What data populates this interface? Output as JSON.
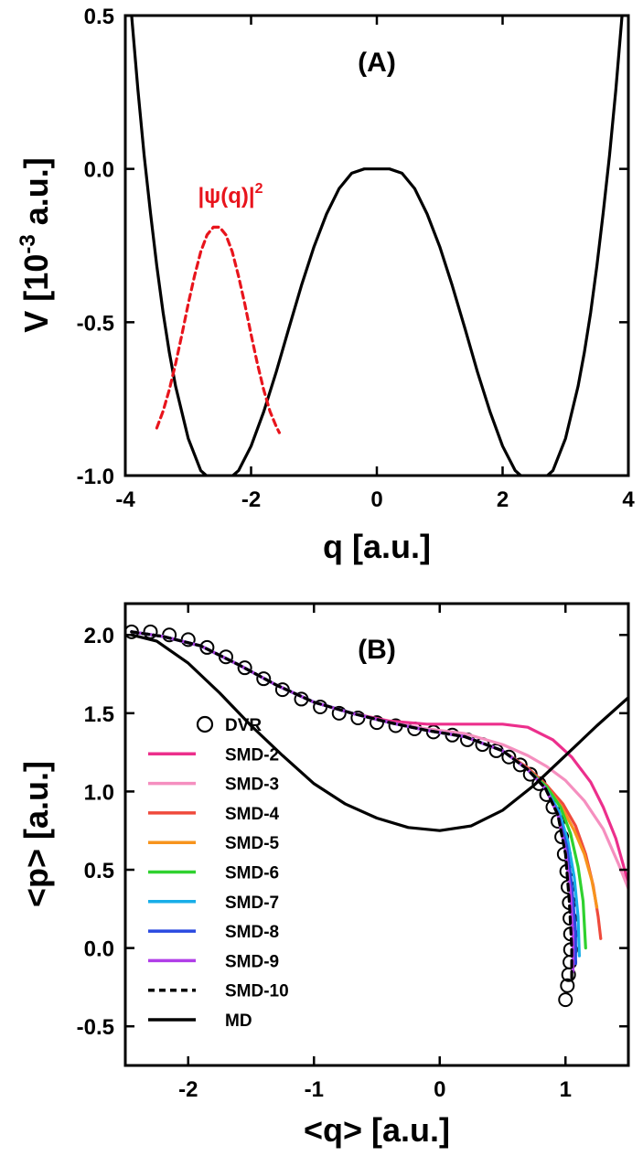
{
  "chart_data": [
    {
      "type": "line",
      "panel_label": "(A)",
      "xlabel": "q [a.u.]",
      "ylabel": "V [10-3 a.u.]",
      "ylabel_parts": {
        "main": "V [10",
        "sup": "-3",
        "rest": " a.u.]"
      },
      "xlim": [
        -4,
        4
      ],
      "ylim": [
        -1.0,
        0.5
      ],
      "xticks": [
        -4,
        -2,
        0,
        2,
        4
      ],
      "xtick_labels": [
        "-4",
        "-2",
        "0",
        "2",
        "4"
      ],
      "yticks": [
        -1.0,
        -0.5,
        0.0,
        0.5
      ],
      "ytick_labels": [
        "-1.0",
        "-0.5",
        "0.0",
        "0.5"
      ],
      "grid": false,
      "series": [
        {
          "color": "#000000",
          "style": "solid",
          "x": [
            -3.9,
            -3.8,
            -3.7,
            -3.6,
            -3.5,
            -3.4,
            -3.3,
            -3.2,
            -3.0,
            -2.8,
            -2.6,
            -2.5,
            -2.4,
            -2.2,
            -2.0,
            -1.8,
            -1.6,
            -1.4,
            -1.2,
            -1.0,
            -0.8,
            -0.6,
            -0.4,
            -0.2,
            0.0,
            0.2,
            0.4,
            0.6,
            0.8,
            1.0,
            1.2,
            1.4,
            1.6,
            1.8,
            2.0,
            2.2,
            2.4,
            2.5,
            2.6,
            2.8,
            3.0,
            3.2,
            3.3,
            3.4,
            3.5,
            3.6,
            3.7,
            3.8,
            3.9
          ],
          "y": [
            0.5,
            0.258,
            0.044,
            -0.143,
            -0.316,
            -0.468,
            -0.598,
            -0.709,
            -0.879,
            -0.984,
            -1.02,
            -1.022,
            -1.02,
            -0.984,
            -0.904,
            -0.792,
            -0.662,
            -0.52,
            -0.381,
            -0.254,
            -0.147,
            -0.064,
            -0.014,
            0.0,
            0.0,
            0.0,
            -0.014,
            -0.064,
            -0.147,
            -0.254,
            -0.381,
            -0.52,
            -0.662,
            -0.792,
            -0.904,
            -0.984,
            -1.02,
            -1.022,
            -1.02,
            -0.984,
            -0.879,
            -0.709,
            -0.598,
            -0.468,
            -0.316,
            -0.143,
            0.044,
            0.258,
            0.5
          ]
        },
        {
          "color": "#e8141c",
          "style": "dashed",
          "x": [
            -3.5,
            -3.4,
            -3.3,
            -3.2,
            -3.1,
            -3.0,
            -2.9,
            -2.8,
            -2.7,
            -2.6,
            -2.5,
            -2.4,
            -2.3,
            -2.2,
            -2.1,
            -2.0,
            -1.9,
            -1.8,
            -1.7,
            -1.6,
            -1.55
          ],
          "y": [
            -0.845,
            -0.79,
            -0.72,
            -0.635,
            -0.54,
            -0.44,
            -0.35,
            -0.27,
            -0.215,
            -0.19,
            -0.19,
            -0.215,
            -0.27,
            -0.35,
            -0.44,
            -0.54,
            -0.635,
            -0.72,
            -0.79,
            -0.84,
            -0.86
          ]
        }
      ],
      "annotations": [
        {
          "text": "|ψ(q)|",
          "sup": "2",
          "color": "#e8141c",
          "x": -2.5,
          "y": -0.1
        }
      ]
    },
    {
      "type": "line",
      "panel_label": "(B)",
      "xlabel": "<q> [a.u.]",
      "ylabel": "<p> [a.u.]",
      "xlim": [
        -2.5,
        1.5
      ],
      "ylim": [
        -0.75,
        2.2
      ],
      "xticks": [
        -2,
        -1,
        0,
        1
      ],
      "xtick_labels": [
        "-2",
        "-1",
        "0",
        "1"
      ],
      "yticks": [
        -0.5,
        0.0,
        0.5,
        1.0,
        1.5,
        2.0
      ],
      "ytick_labels": [
        "-0.5",
        "0.0",
        "0.5",
        "1.0",
        "1.5",
        "2.0"
      ],
      "grid": false,
      "legend": "left",
      "series": [
        {
          "name": "DVR",
          "color": "#000000",
          "marker": "open-circle",
          "x": [
            -2.45,
            -2.3,
            -2.15,
            -2.0,
            -1.85,
            -1.7,
            -1.55,
            -1.4,
            -1.25,
            -1.1,
            -0.95,
            -0.8,
            -0.65,
            -0.5,
            -0.35,
            -0.2,
            -0.05,
            0.1,
            0.22,
            0.34,
            0.45,
            0.55,
            0.64,
            0.72,
            0.79,
            0.85,
            0.9,
            0.94,
            0.97,
            0.99,
            1.01,
            1.02,
            1.03,
            1.035,
            1.04,
            1.04,
            1.035,
            1.025,
            1.015,
            1.0
          ],
          "y": [
            2.02,
            2.02,
            2.0,
            1.97,
            1.92,
            1.86,
            1.79,
            1.72,
            1.65,
            1.59,
            1.54,
            1.5,
            1.47,
            1.44,
            1.42,
            1.4,
            1.38,
            1.36,
            1.33,
            1.3,
            1.26,
            1.22,
            1.17,
            1.11,
            1.05,
            0.98,
            0.9,
            0.81,
            0.71,
            0.6,
            0.49,
            0.39,
            0.29,
            0.19,
            0.09,
            -0.01,
            -0.09,
            -0.17,
            -0.24,
            -0.33
          ]
        },
        {
          "name": "SMD-2",
          "color": "#ec2f8c",
          "x": [
            -2.45,
            -2.2,
            -1.9,
            -1.6,
            -1.3,
            -1.0,
            -0.7,
            -0.4,
            -0.1,
            0.2,
            0.5,
            0.7,
            0.9,
            1.05,
            1.2,
            1.3,
            1.4,
            1.47,
            1.52
          ],
          "y": [
            2.02,
            1.99,
            1.93,
            1.81,
            1.68,
            1.57,
            1.5,
            1.45,
            1.43,
            1.43,
            1.43,
            1.41,
            1.33,
            1.22,
            1.06,
            0.9,
            0.7,
            0.5,
            0.35
          ]
        },
        {
          "name": "SMD-3",
          "color": "#f58fbf",
          "x": [
            -2.45,
            -2.2,
            -1.9,
            -1.6,
            -1.3,
            -1.0,
            -0.7,
            -0.4,
            -0.1,
            0.2,
            0.5,
            0.7,
            0.85,
            1.0,
            1.15,
            1.3,
            1.42,
            1.5
          ],
          "y": [
            2.02,
            1.99,
            1.93,
            1.81,
            1.68,
            1.57,
            1.5,
            1.44,
            1.4,
            1.37,
            1.3,
            1.23,
            1.16,
            1.07,
            0.94,
            0.76,
            0.54,
            0.38
          ]
        },
        {
          "name": "SMD-4",
          "color": "#ef4a3c",
          "x": [
            -2.45,
            -2.2,
            -1.9,
            -1.6,
            -1.3,
            -1.0,
            -0.7,
            -0.4,
            -0.1,
            0.2,
            0.5,
            0.7,
            0.85,
            0.98,
            1.08,
            1.16,
            1.22,
            1.26,
            1.28
          ],
          "y": [
            2.02,
            1.99,
            1.93,
            1.81,
            1.68,
            1.57,
            1.5,
            1.44,
            1.39,
            1.35,
            1.26,
            1.15,
            1.04,
            0.92,
            0.78,
            0.6,
            0.4,
            0.2,
            0.06
          ]
        },
        {
          "name": "SMD-5",
          "color": "#f7941d",
          "x": [
            -2.45,
            -2.2,
            -1.9,
            -1.6,
            -1.3,
            -1.0,
            -0.7,
            -0.4,
            -0.1,
            0.2,
            0.5,
            0.7,
            0.85,
            0.97,
            1.07,
            1.15,
            1.21,
            1.25
          ],
          "y": [
            2.02,
            1.99,
            1.93,
            1.81,
            1.68,
            1.57,
            1.5,
            1.44,
            1.39,
            1.35,
            1.26,
            1.14,
            1.03,
            0.9,
            0.75,
            0.6,
            0.43,
            0.26
          ]
        },
        {
          "name": "SMD-6",
          "color": "#2fd12f",
          "x": [
            -2.45,
            -2.2,
            -1.9,
            -1.6,
            -1.3,
            -1.0,
            -0.7,
            -0.4,
            -0.1,
            0.2,
            0.5,
            0.7,
            0.85,
            0.96,
            1.04,
            1.1,
            1.14,
            1.16
          ],
          "y": [
            2.02,
            1.99,
            1.93,
            1.81,
            1.68,
            1.57,
            1.5,
            1.44,
            1.39,
            1.35,
            1.26,
            1.14,
            1.03,
            0.9,
            0.73,
            0.52,
            0.3,
            0.0
          ]
        },
        {
          "name": "SMD-7",
          "color": "#18aee8",
          "x": [
            -2.45,
            -2.2,
            -1.9,
            -1.6,
            -1.3,
            -1.0,
            -0.7,
            -0.4,
            -0.1,
            0.2,
            0.5,
            0.7,
            0.84,
            0.95,
            1.02,
            1.07,
            1.1,
            1.11
          ],
          "y": [
            2.02,
            1.99,
            1.93,
            1.81,
            1.68,
            1.57,
            1.5,
            1.44,
            1.39,
            1.35,
            1.26,
            1.14,
            1.02,
            0.87,
            0.68,
            0.45,
            0.2,
            -0.05
          ]
        },
        {
          "name": "SMD-8",
          "color": "#2a4ae0",
          "x": [
            -2.45,
            -2.2,
            -1.9,
            -1.6,
            -1.3,
            -1.0,
            -0.7,
            -0.4,
            -0.1,
            0.2,
            0.5,
            0.7,
            0.84,
            0.94,
            1.01,
            1.05,
            1.08,
            1.08
          ],
          "y": [
            2.02,
            1.99,
            1.93,
            1.81,
            1.68,
            1.57,
            1.5,
            1.44,
            1.39,
            1.35,
            1.26,
            1.14,
            1.02,
            0.86,
            0.65,
            0.4,
            0.1,
            -0.1
          ]
        },
        {
          "name": "SMD-9",
          "color": "#b03ee8",
          "x": [
            -2.45,
            -2.2,
            -1.9,
            -1.6,
            -1.3,
            -1.0,
            -0.7,
            -0.4,
            -0.1,
            0.2,
            0.5,
            0.7,
            0.84,
            0.94,
            1.0,
            1.04,
            1.06,
            1.06
          ],
          "y": [
            2.02,
            1.99,
            1.93,
            1.81,
            1.68,
            1.57,
            1.5,
            1.44,
            1.39,
            1.35,
            1.26,
            1.14,
            1.02,
            0.85,
            0.62,
            0.35,
            0.05,
            -0.15
          ]
        },
        {
          "name": "SMD-10",
          "color": "#000000",
          "style": "dashed",
          "x": [
            -2.45,
            -2.2,
            -1.9,
            -1.6,
            -1.3,
            -1.0,
            -0.7,
            -0.4,
            -0.1,
            0.2,
            0.5,
            0.7,
            0.84,
            0.94,
            1.0,
            1.03,
            1.05,
            1.05
          ],
          "y": [
            2.02,
            1.99,
            1.93,
            1.81,
            1.68,
            1.57,
            1.5,
            1.44,
            1.39,
            1.35,
            1.26,
            1.14,
            1.02,
            0.85,
            0.6,
            0.3,
            0.0,
            -0.2
          ]
        },
        {
          "name": "MD",
          "color": "#000000",
          "x": [
            -2.45,
            -2.25,
            -2.0,
            -1.75,
            -1.5,
            -1.25,
            -1.0,
            -0.75,
            -0.5,
            -0.25,
            0.0,
            0.25,
            0.5,
            0.75,
            1.0,
            1.25,
            1.5
          ],
          "y": [
            2.0,
            1.96,
            1.82,
            1.63,
            1.42,
            1.23,
            1.05,
            0.92,
            0.83,
            0.77,
            0.75,
            0.78,
            0.88,
            1.04,
            1.23,
            1.42,
            1.6
          ]
        }
      ]
    }
  ]
}
